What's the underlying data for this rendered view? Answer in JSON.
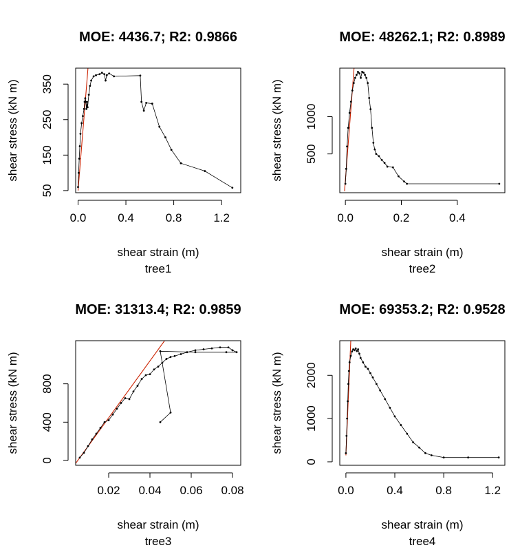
{
  "chart_data": [
    {
      "type": "scatter",
      "title": "MOE: 4436.7; R2: 0.9866",
      "xlabel": "shear strain (m)",
      "sublabel": "tree1",
      "ylabel": "shear stress (kN m)",
      "xlim": [
        -0.02,
        1.36
      ],
      "ylim": [
        44,
        395
      ],
      "xticks": [
        0.0,
        0.4,
        0.8,
        1.2
      ],
      "xtick_labels": [
        "0.0",
        "0.4",
        "0.8",
        "1.2"
      ],
      "yticks": [
        50,
        150,
        250,
        350
      ],
      "ytick_labels": [
        "50",
        "150",
        "250",
        "350"
      ],
      "line_color": "#000000",
      "fit_color": "#cc2200",
      "fit_line": [
        [
          0.0,
          50
        ],
        [
          0.083,
          395
        ]
      ],
      "series": [
        {
          "values": [
            [
              0.0,
              60
            ],
            [
              0.005,
              100
            ],
            [
              0.01,
              140
            ],
            [
              0.015,
              175
            ],
            [
              0.02,
              210
            ],
            [
              0.03,
              240
            ],
            [
              0.04,
              260
            ],
            [
              0.05,
              280
            ],
            [
              0.055,
              300
            ],
            [
              0.06,
              310
            ],
            [
              0.065,
              300
            ],
            [
              0.07,
              280
            ],
            [
              0.075,
              300
            ],
            [
              0.08,
              285
            ],
            [
              0.09,
              320
            ],
            [
              0.1,
              345
            ],
            [
              0.11,
              360
            ],
            [
              0.13,
              372
            ],
            [
              0.15,
              375
            ],
            [
              0.18,
              378
            ],
            [
              0.2,
              382
            ],
            [
              0.22,
              378
            ],
            [
              0.23,
              360
            ],
            [
              0.24,
              375
            ],
            [
              0.26,
              380
            ],
            [
              0.3,
              372
            ],
            [
              0.52,
              374
            ],
            [
              0.53,
              300
            ],
            [
              0.55,
              275
            ],
            [
              0.57,
              297
            ],
            [
              0.62,
              295
            ],
            [
              0.68,
              230
            ],
            [
              0.73,
              200
            ],
            [
              0.78,
              165
            ],
            [
              0.86,
              127
            ],
            [
              1.06,
              105
            ],
            [
              1.29,
              58
            ]
          ]
        }
      ]
    },
    {
      "type": "scatter",
      "title": "MOE: 48262.1; R2: 0.8989",
      "xlabel": "shear strain (m)",
      "sublabel": "tree2",
      "ylabel": "shear stress (kN m)",
      "xlim": [
        -0.02,
        0.57
      ],
      "ylim": [
        -20,
        1650
      ],
      "xticks": [
        0.0,
        0.2,
        0.4
      ],
      "xtick_labels": [
        "0.0",
        "0.2",
        "0.4"
      ],
      "yticks": [
        500,
        1000
      ],
      "ytick_labels": [
        "500",
        "1000"
      ],
      "line_color": "#000000",
      "fit_color": "#cc2200",
      "fit_line": [
        [
          -0.003,
          0
        ],
        [
          0.031,
          1650
        ]
      ],
      "series": [
        {
          "values": [
            [
              0.0,
              100
            ],
            [
              0.003,
              300
            ],
            [
              0.006,
              600
            ],
            [
              0.01,
              850
            ],
            [
              0.015,
              1050
            ],
            [
              0.02,
              1200
            ],
            [
              0.025,
              1350
            ],
            [
              0.03,
              1450
            ],
            [
              0.035,
              1520
            ],
            [
              0.04,
              1560
            ],
            [
              0.045,
              1600
            ],
            [
              0.05,
              1580
            ],
            [
              0.055,
              1520
            ],
            [
              0.06,
              1600
            ],
            [
              0.065,
              1590
            ],
            [
              0.07,
              1560
            ],
            [
              0.075,
              1520
            ],
            [
              0.08,
              1450
            ],
            [
              0.085,
              1250
            ],
            [
              0.09,
              1100
            ],
            [
              0.095,
              850
            ],
            [
              0.1,
              650
            ],
            [
              0.105,
              560
            ],
            [
              0.11,
              500
            ],
            [
              0.12,
              470
            ],
            [
              0.13,
              420
            ],
            [
              0.14,
              380
            ],
            [
              0.15,
              330
            ],
            [
              0.17,
              320
            ],
            [
              0.19,
              200
            ],
            [
              0.21,
              130
            ],
            [
              0.22,
              100
            ],
            [
              0.55,
              100
            ]
          ]
        }
      ]
    },
    {
      "type": "scatter",
      "title": "MOE: 31313.4; R2: 0.9859",
      "xlabel": "shear strain (m)",
      "sublabel": "tree3",
      "ylabel": "shear stress (kN m)",
      "xlim": [
        0.004,
        0.084
      ],
      "ylim": [
        -50,
        1250
      ],
      "xticks": [
        0.02,
        0.04,
        0.06,
        0.08
      ],
      "xtick_labels": [
        "0.02",
        "0.04",
        "0.06",
        "0.08"
      ],
      "yticks": [
        0,
        400,
        800
      ],
      "ytick_labels": [
        "0",
        "400",
        "800"
      ],
      "line_color": "#000000",
      "fit_color": "#cc2200",
      "fit_line": [
        [
          0.004,
          -30
        ],
        [
          0.0471,
          1250
        ]
      ],
      "series": [
        {
          "values": [
            [
              0.006,
              30
            ],
            [
              0.008,
              80
            ],
            [
              0.01,
              150
            ],
            [
              0.012,
              220
            ],
            [
              0.014,
              280
            ],
            [
              0.016,
              340
            ],
            [
              0.018,
              400
            ],
            [
              0.02,
              420
            ],
            [
              0.022,
              480
            ],
            [
              0.024,
              540
            ],
            [
              0.026,
              600
            ],
            [
              0.028,
              650
            ],
            [
              0.03,
              640
            ],
            [
              0.032,
              720
            ],
            [
              0.034,
              780
            ],
            [
              0.036,
              850
            ],
            [
              0.038,
              890
            ],
            [
              0.04,
              900
            ],
            [
              0.042,
              950
            ],
            [
              0.044,
              980
            ],
            [
              0.046,
              1020
            ],
            [
              0.048,
              1060
            ],
            [
              0.05,
              1080
            ],
            [
              0.052,
              1090
            ],
            [
              0.055,
              1110
            ],
            [
              0.058,
              1130
            ],
            [
              0.062,
              1150
            ],
            [
              0.066,
              1160
            ],
            [
              0.07,
              1170
            ],
            [
              0.074,
              1180
            ],
            [
              0.078,
              1180
            ],
            [
              0.08,
              1150
            ],
            [
              0.082,
              1130
            ],
            [
              0.077,
              1130
            ],
            [
              0.062,
              1130
            ],
            [
              0.045,
              1140
            ],
            [
              0.05,
              500
            ],
            [
              0.045,
              400
            ]
          ]
        }
      ]
    },
    {
      "type": "scatter",
      "title": "MOE: 69353.2; R2: 0.9528",
      "xlabel": "shear strain (m)",
      "sublabel": "tree4",
      "ylabel": "shear stress (kN m)",
      "xlim": [
        -0.05,
        1.3
      ],
      "ylim": [
        -80,
        2800
      ],
      "xticks": [
        0.0,
        0.4,
        0.8,
        1.2
      ],
      "xtick_labels": [
        "0.0",
        "0.4",
        "0.8",
        "1.2"
      ],
      "yticks": [
        0,
        1000,
        2000
      ],
      "ytick_labels": [
        "0",
        "1000",
        "2000"
      ],
      "line_color": "#000000",
      "fit_color": "#cc2200",
      "fit_line": [
        [
          0.0,
          150
        ],
        [
          0.04,
          2800
        ]
      ],
      "series": [
        {
          "values": [
            [
              0.0,
              200
            ],
            [
              0.005,
              600
            ],
            [
              0.01,
              1000
            ],
            [
              0.015,
              1400
            ],
            [
              0.02,
              1800
            ],
            [
              0.025,
              2100
            ],
            [
              0.03,
              2300
            ],
            [
              0.04,
              2450
            ],
            [
              0.05,
              2550
            ],
            [
              0.06,
              2600
            ],
            [
              0.07,
              2580
            ],
            [
              0.08,
              2620
            ],
            [
              0.09,
              2560
            ],
            [
              0.1,
              2600
            ],
            [
              0.11,
              2500
            ],
            [
              0.12,
              2400
            ],
            [
              0.14,
              2300
            ],
            [
              0.16,
              2200
            ],
            [
              0.18,
              2150
            ],
            [
              0.2,
              2050
            ],
            [
              0.22,
              1950
            ],
            [
              0.25,
              1800
            ],
            [
              0.28,
              1650
            ],
            [
              0.32,
              1450
            ],
            [
              0.36,
              1250
            ],
            [
              0.4,
              1050
            ],
            [
              0.45,
              850
            ],
            [
              0.5,
              650
            ],
            [
              0.55,
              450
            ],
            [
              0.6,
              330
            ],
            [
              0.65,
              200
            ],
            [
              0.7,
              150
            ],
            [
              0.8,
              100
            ],
            [
              1.0,
              100
            ],
            [
              1.25,
              100
            ]
          ]
        }
      ]
    }
  ]
}
